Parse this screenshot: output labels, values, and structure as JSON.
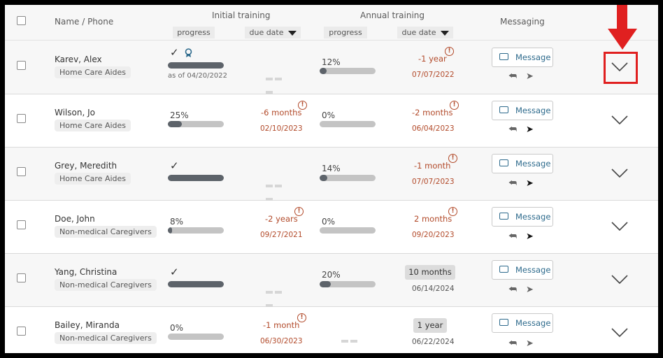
{
  "header": {
    "name_phone": "Name / Phone",
    "initial_training": "Initial training",
    "annual_training": "Annual training",
    "messaging": "Messaging",
    "progress": "progress",
    "due_date": "due date"
  },
  "message_label": "Message",
  "rows": [
    {
      "name": "Karev, Alex",
      "role": "Home Care Aides",
      "init_pct": "",
      "init_fill": 100,
      "init_done": true,
      "init_asof": "as of 04/20/2022",
      "init_due": "",
      "init_date": "",
      "ann_pct": "12%",
      "ann_fill": 12,
      "ann_due": "-1 year",
      "ann_date": "07/07/2022"
    },
    {
      "name": "Wilson, Jo",
      "role": "Home Care Aides",
      "init_pct": "25%",
      "init_fill": 25,
      "init_due": "-6 months",
      "init_date": "02/10/2023",
      "ann_pct": "0%",
      "ann_fill": 0,
      "ann_due": "-2 months",
      "ann_date": "06/04/2023"
    },
    {
      "name": "Grey, Meredith",
      "role": "Home Care Aides",
      "init_pct": "",
      "init_fill": 100,
      "init_done": true,
      "ann_pct": "14%",
      "ann_fill": 14,
      "ann_due": "-1 month",
      "ann_date": "07/07/2023"
    },
    {
      "name": "Doe, John",
      "role": "Non-medical Caregivers",
      "init_pct": "8%",
      "init_fill": 8,
      "init_due": "-2 years",
      "init_date": "09/27/2021",
      "ann_pct": "0%",
      "ann_fill": 0,
      "ann_due": "2 months",
      "ann_date": "09/20/2023"
    },
    {
      "name": "Yang, Christina",
      "role": "Non-medical Caregivers",
      "init_pct": "",
      "init_fill": 100,
      "init_done": true,
      "ann_pct": "20%",
      "ann_fill": 20,
      "ann_pill": "10 months",
      "ann_date": "06/14/2024"
    },
    {
      "name": "Bailey, Miranda",
      "role": "Non-medical Caregivers",
      "init_pct": "0%",
      "init_fill": 0,
      "init_due": "-1 month",
      "init_date": "06/30/2023",
      "ann_pill": "1 year",
      "ann_date": "06/22/2024"
    }
  ],
  "colors": {
    "accent": "#2d6a8c",
    "overdue": "#b24a2a",
    "annotation": "#e02020"
  }
}
